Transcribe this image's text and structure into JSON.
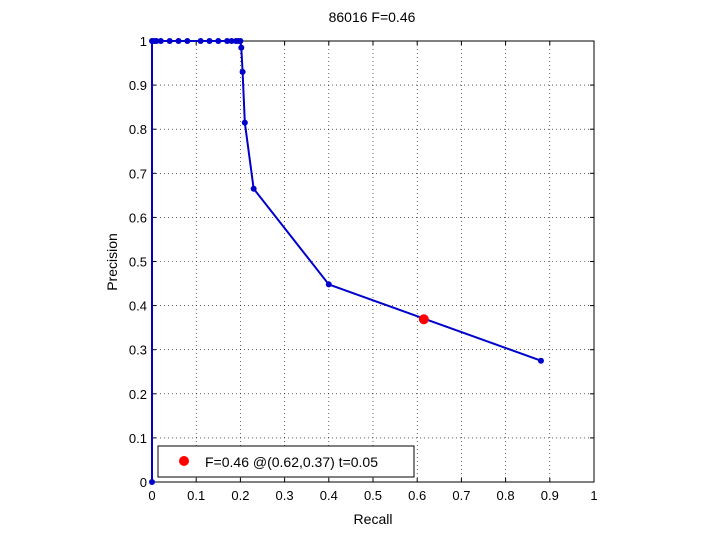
{
  "chart_data": {
    "type": "line",
    "title": "86016 F=0.46",
    "xlabel": "Recall",
    "ylabel": "Precision",
    "xlim": [
      0,
      1
    ],
    "ylim": [
      0,
      1
    ],
    "xticks": [
      "0",
      "0.1",
      "0.2",
      "0.3",
      "0.4",
      "0.5",
      "0.6",
      "0.7",
      "0.8",
      "0.9",
      "1"
    ],
    "yticks": [
      "0",
      "0.1",
      "0.2",
      "0.3",
      "0.4",
      "0.5",
      "0.6",
      "0.7",
      "0.8",
      "0.9",
      "1"
    ],
    "grid": true,
    "series": [
      {
        "color": "#0000cc",
        "x": [
          0,
          0,
          0.005,
          0.01,
          0.02,
          0.04,
          0.06,
          0.08,
          0.11,
          0.13,
          0.15,
          0.17,
          0.18,
          0.19,
          0.195,
          0.2,
          0.202,
          0.205,
          0.21,
          0.23,
          0.4,
          0.88
        ],
        "y": [
          0,
          1,
          1,
          1,
          1,
          1,
          1,
          1,
          1,
          1,
          1,
          1,
          1,
          1,
          1,
          1,
          0.985,
          0.93,
          0.815,
          0.665,
          0.448,
          0.275
        ]
      }
    ],
    "highlight": {
      "x": 0.615,
      "y": 0.369,
      "color": "#ff0000"
    },
    "legend": {
      "position": "bottom-left",
      "label": "F=0.46 @(0.62,0.37) t=0.05"
    }
  }
}
